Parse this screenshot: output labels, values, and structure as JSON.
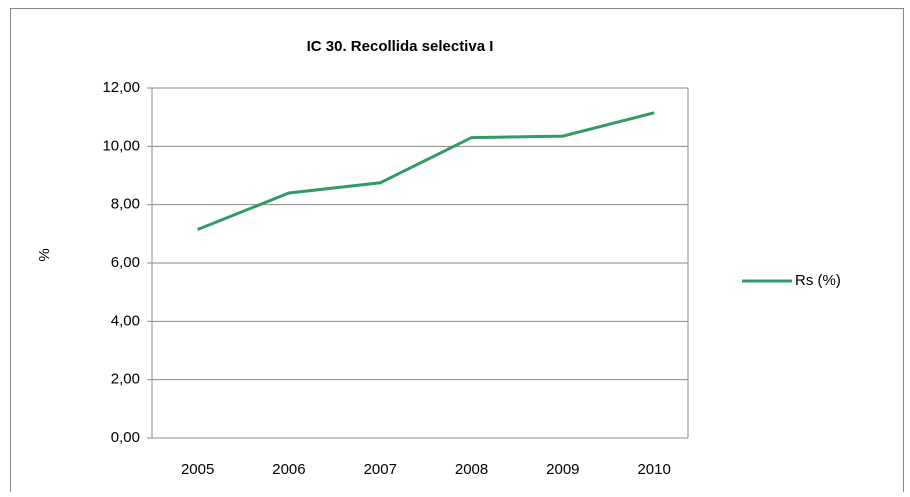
{
  "chart_data": {
    "type": "line",
    "title": "IC 30. Recollida selectiva I",
    "y_label": "%",
    "categories": [
      "2005",
      "2006",
      "2007",
      "2008",
      "2009",
      "2010"
    ],
    "series": [
      {
        "name": "Rs (%)",
        "color": "#339966",
        "values": [
          7.15,
          8.4,
          8.75,
          10.3,
          10.35,
          11.15
        ]
      }
    ],
    "ylim": [
      0,
      12
    ],
    "yticks": [
      {
        "value": 0,
        "label": "0,00"
      },
      {
        "value": 2,
        "label": "2,00"
      },
      {
        "value": 4,
        "label": "4,00"
      },
      {
        "value": 6,
        "label": "6,00"
      },
      {
        "value": 8,
        "label": "8,00"
      },
      {
        "value": 10,
        "label": "10,00"
      },
      {
        "value": 12,
        "label": "12,00"
      }
    ],
    "grid": true,
    "legend": "right"
  }
}
